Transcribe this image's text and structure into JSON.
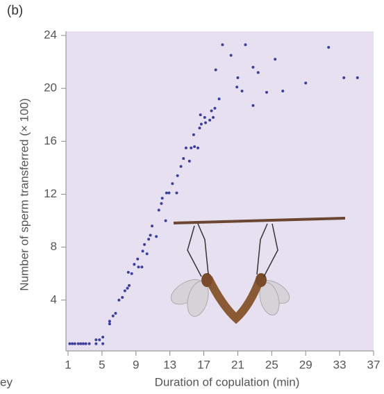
{
  "panel_label": "(b)",
  "cut_text": "ey",
  "chart_data": {
    "type": "scatter",
    "x_label": "Duration of copulation (min)",
    "y_label": "Number of sperm transferred (× 100)",
    "color": "#3b3f9e",
    "xlim": [
      1,
      37
    ],
    "xticks": [
      1,
      5,
      9,
      13,
      17,
      21,
      25,
      29,
      33,
      37
    ],
    "ylim": [
      0,
      24
    ],
    "yticks": [
      4,
      8,
      12,
      16,
      20,
      24
    ],
    "x": [
      1.2,
      1.5,
      1.8,
      2.2,
      2.5,
      2.8,
      3.1,
      3.5,
      4.3,
      4.3,
      4.7,
      5.1,
      5.1,
      5.9,
      5.9,
      6.3,
      6.6,
      7.0,
      7.4,
      7.7,
      8.0,
      8.2,
      8.1,
      8.5,
      8.8,
      9.2,
      9.3,
      9.7,
      9.8,
      10.0,
      10.3,
      10.5,
      10.7,
      10.9,
      11.4,
      11.7,
      12.0,
      12.1,
      12.5,
      12.6,
      12.9,
      13.3,
      13.8,
      13.9,
      14.3,
      14.6,
      14.9,
      15.3,
      15.5,
      15.8,
      15.9,
      16.3,
      16.5,
      16.6,
      16.7,
      17.1,
      17.2,
      17.7,
      17.9,
      18.1,
      18.3,
      18.4,
      18.8,
      19.2,
      20.2,
      21.0,
      20.9,
      21.5,
      21.9,
      22.8,
      22.8,
      23.4,
      24.4,
      25.4,
      26.3,
      29.0,
      31.7,
      33.5,
      35.1
    ],
    "values": [
      0.7,
      0.7,
      0.7,
      0.7,
      0.7,
      0.7,
      0.7,
      0.7,
      0.7,
      1.0,
      1.0,
      0.7,
      1.2,
      2.2,
      2.4,
      2.8,
      3.0,
      4.0,
      4.2,
      4.7,
      4.9,
      5.1,
      6.1,
      6.0,
      6.7,
      7.1,
      6.5,
      6.5,
      7.7,
      8.2,
      7.5,
      8.6,
      8.9,
      9.6,
      8.8,
      10.8,
      11.3,
      11.7,
      10.0,
      12.1,
      12.1,
      12.8,
      12.1,
      13.4,
      14.1,
      14.7,
      15.5,
      14.5,
      15.5,
      16.5,
      15.6,
      15.5,
      17.0,
      18.0,
      17.3,
      17.8,
      17.4,
      17.6,
      18.3,
      17.8,
      18.5,
      21.4,
      19.2,
      23.3,
      22.5,
      20.8,
      20.1,
      19.8,
      23.3,
      21.6,
      18.7,
      21.2,
      19.7,
      22.2,
      19.8,
      20.4,
      23.1,
      20.8,
      20.8
    ]
  }
}
